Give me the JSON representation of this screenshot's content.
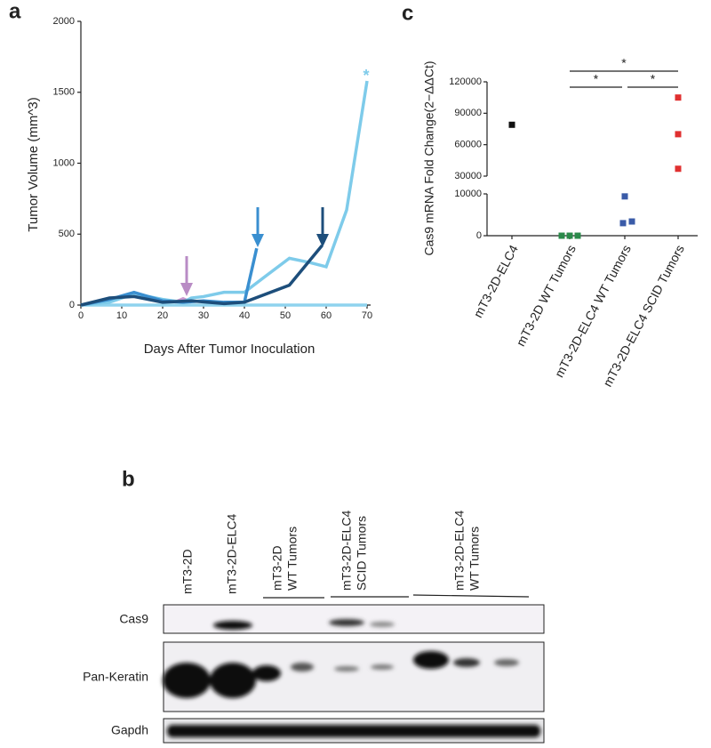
{
  "panel_labels": [
    "a",
    "b",
    "c"
  ],
  "chart_data": [
    {
      "type": "line",
      "xlabel": "Days After Tumor Inoculation",
      "ylabel": "Tumor Volume (mm^3)",
      "xlim": [
        0,
        70
      ],
      "xticks": [
        0,
        10,
        20,
        30,
        40,
        50,
        60,
        70
      ],
      "ylim": [
        0,
        2000
      ],
      "yticks": [
        0,
        500,
        1000,
        1500,
        2000
      ],
      "annotation": "*",
      "series": [
        {
          "color": "#8fd3ee",
          "x": [
            0,
            70
          ],
          "values": [
            0,
            0
          ]
        },
        {
          "color": "#c99ad0",
          "x": [
            23,
            25,
            27
          ],
          "values": [
            20,
            45,
            20
          ]
        },
        {
          "color": "#7ecbea",
          "x": [
            0,
            7,
            13,
            20,
            25,
            27,
            30,
            35,
            40,
            45,
            51,
            56,
            60,
            65,
            70
          ],
          "values": [
            0,
            20,
            80,
            40,
            20,
            50,
            60,
            90,
            90,
            200,
            330,
            300,
            270,
            670,
            1580
          ]
        },
        {
          "color": "#3a8fd0",
          "x": [
            0,
            7,
            13,
            20,
            25,
            30,
            35,
            40,
            43
          ],
          "values": [
            0,
            40,
            90,
            30,
            20,
            30,
            20,
            20,
            400
          ]
        },
        {
          "color": "#1d4e7b",
          "x": [
            0,
            7,
            13,
            20,
            27,
            35,
            40,
            51,
            59
          ],
          "values": [
            0,
            50,
            60,
            20,
            30,
            10,
            20,
            140,
            420
          ]
        }
      ]
    },
    {
      "type": "scatter",
      "ylabel": "Cas9 mRNA Fold Change(2−ΔΔCt)",
      "categories": [
        "mT3-2D-ELC4",
        "mT3-2D WT Tumors",
        "mT3-2D-ELC4 WT Tumors",
        "mT3-2D-ELC4  SCID Tumors"
      ],
      "ylim": [
        0,
        120000
      ],
      "ybreak": [
        10000,
        30000
      ],
      "yticks": [
        0,
        10000,
        30000,
        60000,
        90000,
        120000
      ],
      "significance": [
        "*",
        "*",
        "*"
      ],
      "series": [
        {
          "color": "#111111",
          "values": [
            79000
          ]
        },
        {
          "color": "#2a8a4a",
          "values": [
            0,
            0,
            0
          ]
        },
        {
          "color": "#3a5ba8",
          "values": [
            9400,
            3000,
            3400
          ]
        },
        {
          "color": "#e03030",
          "values": [
            105000,
            70000,
            37000
          ]
        }
      ]
    }
  ],
  "blot": {
    "lanes": [
      "mT3-2D",
      "mT3-2D-ELC4"
    ],
    "groups": [
      [
        "mT3-2D",
        "WT Tumors"
      ],
      [
        "mT3-2D-ELC4",
        "SCID Tumors"
      ],
      [
        "mT3-2D-ELC4",
        "WT Tumors"
      ]
    ],
    "rows": [
      "Cas9",
      "Pan-Keratin",
      "Gapdh"
    ]
  }
}
